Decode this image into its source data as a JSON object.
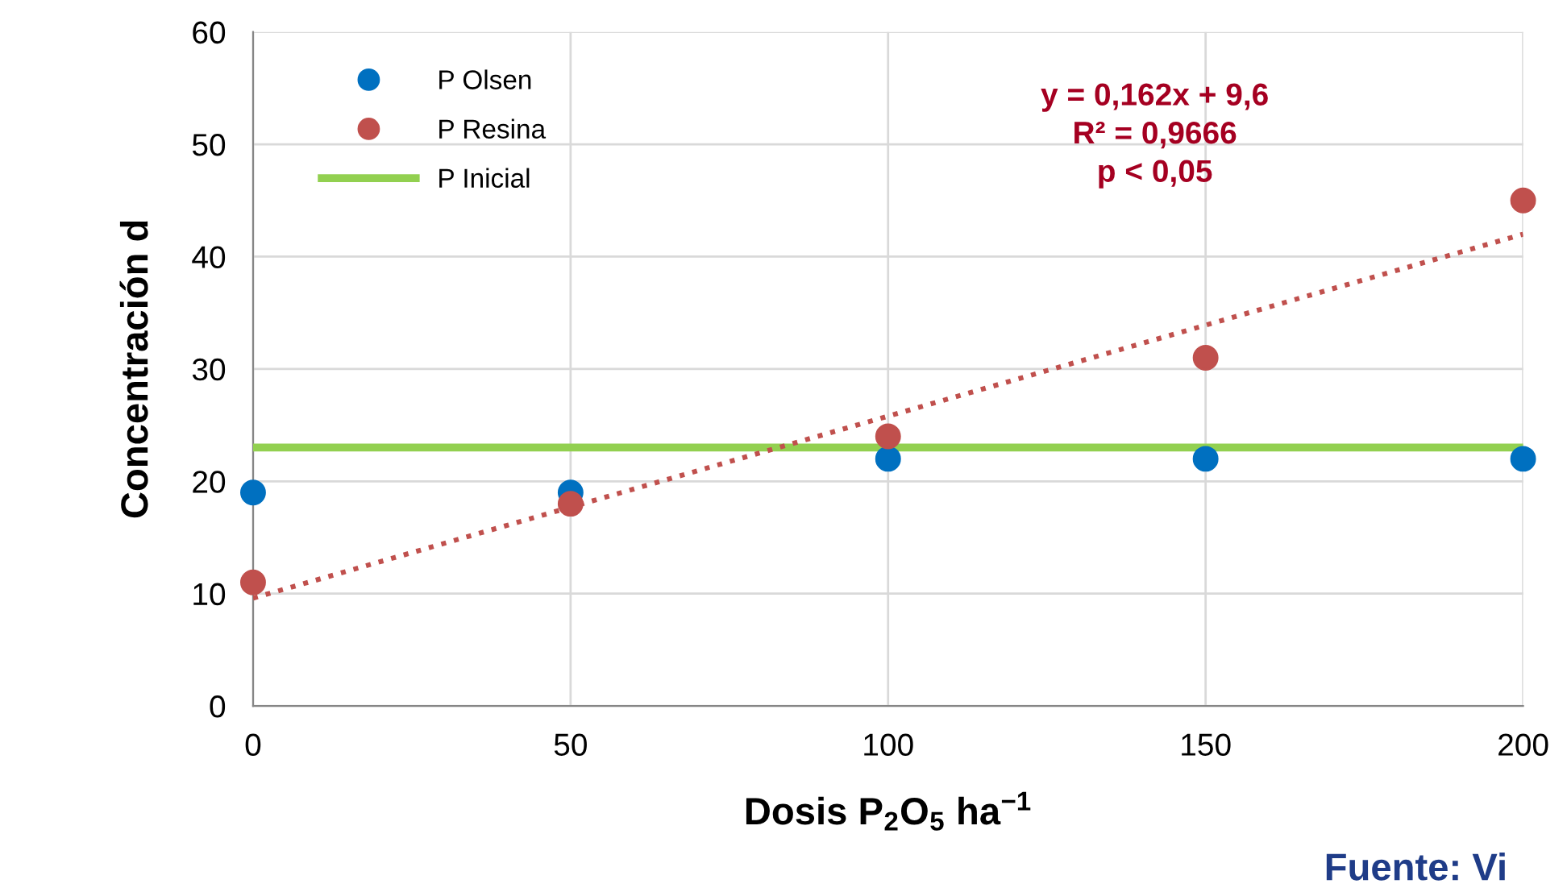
{
  "chart_data": {
    "type": "scatter",
    "xlabel": "Dosis P$_{2}$O$_{5}$ ha$^{−1}$",
    "ylabel": "Concentración d",
    "x": [
      0,
      50,
      100,
      150,
      200
    ],
    "series": [
      {
        "name": "P Olsen",
        "color": "#0070c0",
        "values": [
          19,
          19,
          22,
          22,
          22
        ]
      },
      {
        "name": "P Resina",
        "color": "#c0504d",
        "values": [
          11,
          18,
          24,
          31,
          45
        ]
      },
      {
        "name": "P Inicial",
        "type": "line",
        "color": "#92d050",
        "values": [
          23,
          23,
          23,
          23,
          23
        ],
        "marker": "none",
        "line_style": "solid"
      },
      {
        "type": "line",
        "color": "#c0504d",
        "values": [
          9.6,
          17.7,
          25.8,
          33.9,
          42.0
        ],
        "marker": "none",
        "line_style": "dotted"
      }
    ],
    "marker": "circle",
    "xlim": [
      0,
      200
    ],
    "xticks": [
      0,
      50,
      100,
      150,
      200
    ],
    "ylim": [
      0,
      60
    ],
    "yticks": [
      0,
      10,
      20,
      30,
      40,
      50,
      60
    ],
    "grid": true,
    "legend": "top left",
    "annotations": [
      "y = 0,162x + 9,6\nR² = 0,9666\np < 0,05",
      "Fuente: Vi"
    ]
  }
}
